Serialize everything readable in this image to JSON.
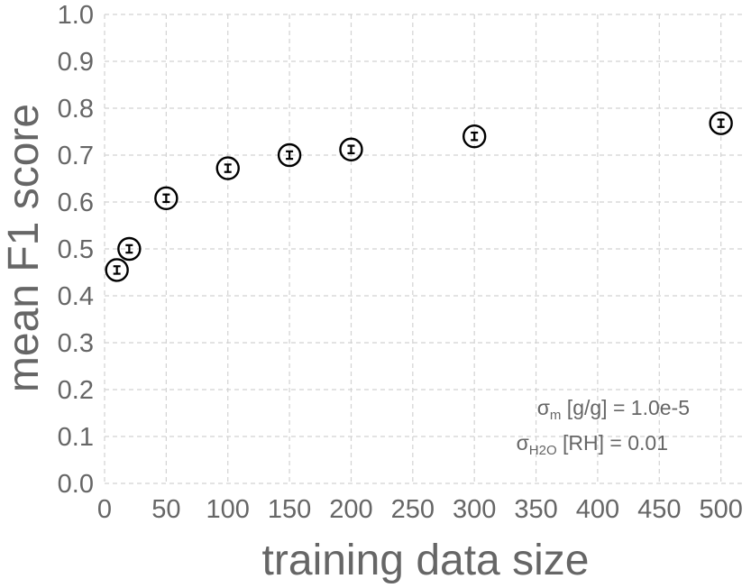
{
  "chart_data": {
    "type": "scatter",
    "title": "",
    "xlabel": "training data size",
    "ylabel": "mean F1 score",
    "xlim": [
      0,
      520
    ],
    "ylim": [
      0,
      1.0
    ],
    "grid": true,
    "x_ticks": [
      "0",
      "50",
      "100",
      "150",
      "200",
      "250",
      "300",
      "350",
      "400",
      "450",
      "500"
    ],
    "y_ticks": [
      "0.0",
      "0.1",
      "0.2",
      "0.3",
      "0.4",
      "0.5",
      "0.6",
      "0.7",
      "0.8",
      "0.9",
      "1.0"
    ],
    "points": [
      {
        "x": 10,
        "y": 0.455,
        "err": 0.008
      },
      {
        "x": 20,
        "y": 0.5,
        "err": 0.008
      },
      {
        "x": 50,
        "y": 0.608,
        "err": 0.008
      },
      {
        "x": 100,
        "y": 0.672,
        "err": 0.008
      },
      {
        "x": 150,
        "y": 0.7,
        "err": 0.008
      },
      {
        "x": 200,
        "y": 0.712,
        "err": 0.008
      },
      {
        "x": 300,
        "y": 0.74,
        "err": 0.008
      },
      {
        "x": 500,
        "y": 0.768,
        "err": 0.008
      }
    ],
    "annotations": {
      "line1_symbol": "σ",
      "line1_sub": "m",
      "line1_text": " [g/g] = 1.0e-5",
      "line2_symbol": "σ",
      "line2_sub": "H2O",
      "line2_text": " [RH] = 0.01"
    },
    "colors": {
      "marker": "#000000",
      "grid": "#d2d2d2",
      "text": "#666666"
    }
  }
}
